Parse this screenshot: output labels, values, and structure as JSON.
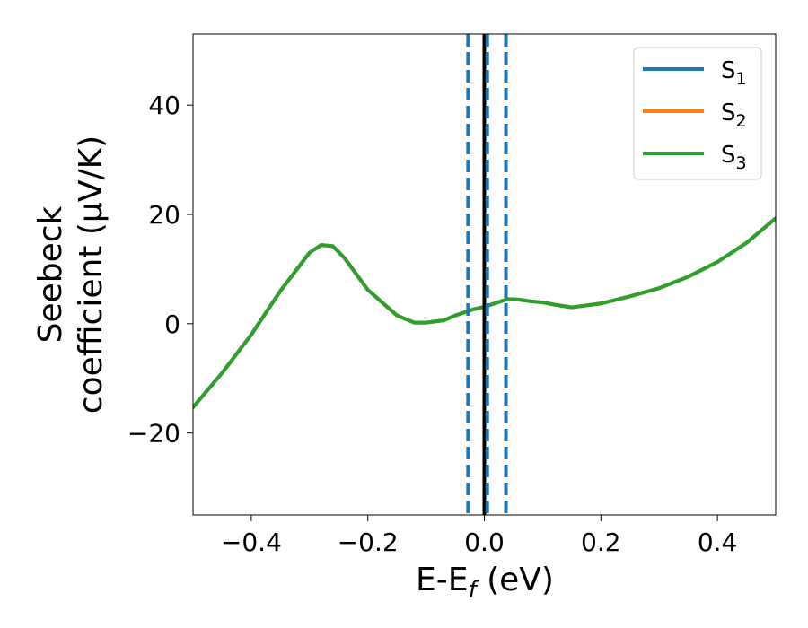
{
  "chart_data": {
    "type": "line",
    "xlabel": "E-E",
    "xlabel_sub": "f",
    "xlabel_unit": " (eV)",
    "ylabel_line1": "Seebeck",
    "ylabel_line2": "coefficient  (μV/K)",
    "xlim": [
      -0.5,
      0.5
    ],
    "ylim": [
      -35,
      53
    ],
    "x_ticks": [
      -0.4,
      -0.2,
      0.0,
      0.2,
      0.4
    ],
    "x_tick_labels": [
      "−0.4",
      "−0.2",
      "0.0",
      "0.2",
      "0.4"
    ],
    "y_ticks": [
      -20,
      0,
      20,
      40
    ],
    "y_tick_labels": [
      "−20",
      "0",
      "20",
      "40"
    ],
    "grid": false,
    "legend_position": "top-right",
    "series": [
      {
        "name": "S",
        "sub": "1",
        "color": "#1f77b4",
        "x": [
          -0.5,
          -0.45,
          -0.4,
          -0.35,
          -0.3,
          -0.28,
          -0.26,
          -0.24,
          -0.2,
          -0.15,
          -0.12,
          -0.1,
          -0.07,
          -0.05,
          -0.02,
          0.0,
          0.02,
          0.04,
          0.06,
          0.08,
          0.1,
          0.12,
          0.15,
          0.2,
          0.25,
          0.3,
          0.35,
          0.4,
          0.45,
          0.5
        ],
        "y": [
          -15.3,
          -9.0,
          -2.0,
          6.0,
          13.0,
          14.4,
          14.2,
          12.0,
          6.2,
          1.5,
          0.2,
          0.2,
          0.6,
          1.5,
          2.6,
          3.1,
          3.8,
          4.5,
          4.4,
          4.1,
          3.9,
          3.5,
          3.0,
          3.7,
          5.0,
          6.5,
          8.6,
          11.3,
          14.8,
          19.3
        ]
      },
      {
        "name": "S",
        "sub": "2",
        "color": "#ff7f0e",
        "x": [
          -0.5,
          -0.45,
          -0.4,
          -0.35,
          -0.3,
          -0.28,
          -0.26,
          -0.24,
          -0.2,
          -0.15,
          -0.12,
          -0.1,
          -0.07,
          -0.05,
          -0.02,
          0.0,
          0.02,
          0.04,
          0.06,
          0.08,
          0.1,
          0.12,
          0.15,
          0.2,
          0.25,
          0.3,
          0.35,
          0.4,
          0.45,
          0.5
        ],
        "y": [
          -15.3,
          -9.0,
          -2.0,
          6.0,
          13.0,
          14.4,
          14.2,
          12.0,
          6.2,
          1.5,
          0.2,
          0.2,
          0.6,
          1.5,
          2.6,
          3.1,
          3.8,
          4.5,
          4.4,
          4.1,
          3.9,
          3.5,
          3.0,
          3.7,
          5.0,
          6.5,
          8.6,
          11.3,
          14.8,
          19.3
        ]
      },
      {
        "name": "S",
        "sub": "3",
        "color": "#2ca02c",
        "x": [
          -0.5,
          -0.45,
          -0.4,
          -0.35,
          -0.3,
          -0.28,
          -0.26,
          -0.24,
          -0.2,
          -0.15,
          -0.12,
          -0.1,
          -0.07,
          -0.05,
          -0.02,
          0.0,
          0.02,
          0.04,
          0.06,
          0.08,
          0.1,
          0.12,
          0.15,
          0.2,
          0.25,
          0.3,
          0.35,
          0.4,
          0.45,
          0.5
        ],
        "y": [
          -15.3,
          -9.0,
          -2.0,
          6.0,
          13.0,
          14.4,
          14.2,
          12.0,
          6.2,
          1.5,
          0.2,
          0.2,
          0.6,
          1.5,
          2.6,
          3.1,
          3.8,
          4.5,
          4.4,
          4.1,
          3.9,
          3.5,
          3.0,
          3.7,
          5.0,
          6.5,
          8.6,
          11.3,
          14.8,
          19.3
        ]
      }
    ],
    "vlines": [
      {
        "x": 0.0,
        "color": "#000000",
        "style": "solid"
      },
      {
        "x": -0.028,
        "color": "#1f77b4",
        "style": "dashed"
      },
      {
        "x": 0.005,
        "color": "#1f77b4",
        "style": "dashed"
      },
      {
        "x": 0.037,
        "color": "#1f77b4",
        "style": "dashed"
      }
    ]
  }
}
